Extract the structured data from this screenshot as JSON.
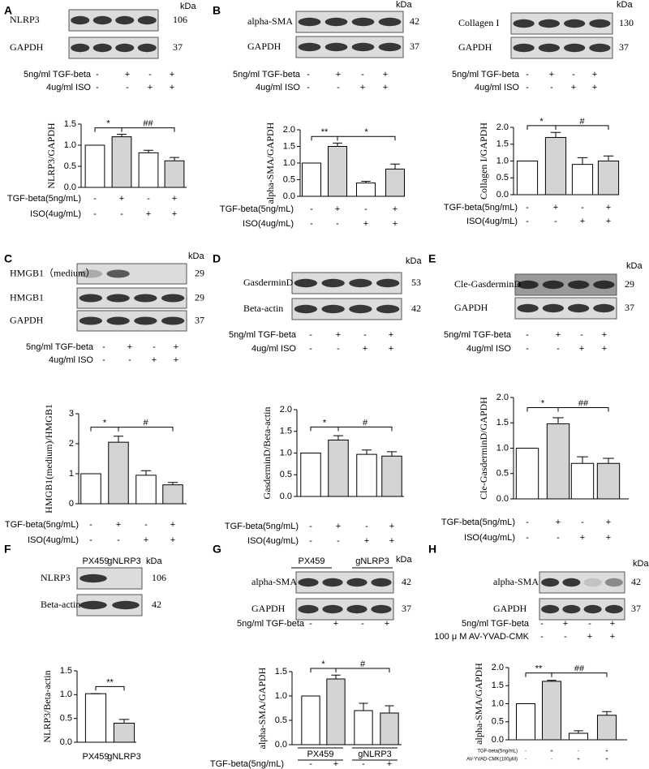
{
  "panels": [
    {
      "label": "A",
      "kda_unit": "kDa",
      "blots": [
        {
          "name": "NLRP3",
          "kda": 106
        },
        {
          "name": "GAPDH",
          "kda": 37
        }
      ],
      "treatments": [
        {
          "name": "5ng/ml TGF-beta",
          "signs": [
            "-",
            "+",
            "-",
            "+"
          ]
        },
        {
          "name": "4ug/ml ISO",
          "signs": [
            "-",
            "-",
            "+",
            "+"
          ]
        }
      ],
      "chart": {
        "type": "bar",
        "ylabel": "NLRP3/GAPDH",
        "ylim": [
          0,
          1.5
        ],
        "yticks": [
          {
            "value": 0,
            "label": "0.0"
          },
          0.5,
          {
            "value": 1,
            "label": "1.0"
          },
          1.5
        ],
        "values": [
          1.0,
          1.2,
          0.82,
          0.63
        ],
        "errors": [
          0,
          0.06,
          0.06,
          0.08
        ],
        "colors": [
          "#ffffff",
          "#d4d4d4",
          "#ffffff",
          "#d4d4d4"
        ],
        "significance": [
          "*",
          "##"
        ],
        "conditions": [
          {
            "name": "TGF-beta(5ng/mL)",
            "signs": [
              "-",
              "+",
              "-",
              "+"
            ]
          },
          {
            "name": "ISO(4ug/mL)",
            "signs": [
              "-",
              "-",
              "+",
              "+"
            ]
          }
        ]
      }
    },
    {
      "label": "B",
      "kda_unit": "kDa",
      "blots": [
        {
          "name": "alpha-SMA",
          "kda": 42
        },
        {
          "name": "GAPDH",
          "kda": 37
        }
      ],
      "treatments": [
        {
          "name": "5ng/ml TGF-beta",
          "signs": [
            "-",
            "+",
            "-",
            "+"
          ]
        },
        {
          "name": "4ug/ml ISO",
          "signs": [
            "-",
            "-",
            "+",
            "+"
          ]
        }
      ],
      "chart": {
        "type": "bar",
        "ylabel": "alpha-SMA/GAPDH",
        "ylim": [
          0,
          2
        ],
        "yticks": [
          {
            "value": 0,
            "label": "0.0"
          },
          0.5,
          {
            "value": 1,
            "label": "1.0"
          },
          1.5,
          {
            "value": 2,
            "label": "2.0"
          }
        ],
        "values": [
          1.0,
          1.5,
          0.4,
          0.82
        ],
        "errors": [
          0,
          0.1,
          0.05,
          0.15
        ],
        "colors": [
          "#ffffff",
          "#d4d4d4",
          "#ffffff",
          "#d4d4d4"
        ],
        "significance": [
          "**",
          "*"
        ],
        "conditions": [
          {
            "name": "TGF-beta(5ng/mL)",
            "signs": [
              "-",
              "+",
              "-",
              "+"
            ]
          },
          {
            "name": "ISO(4ug/mL)",
            "signs": [
              "-",
              "-",
              "+",
              "+"
            ]
          }
        ]
      }
    },
    {
      "kda_unit": "kDa",
      "blots": [
        {
          "name": "Collagen I",
          "kda": 130
        },
        {
          "name": "GAPDH",
          "kda": 37
        }
      ],
      "treatments": [
        {
          "name": "5ng/ml TGF-beta",
          "signs": [
            "-",
            "+",
            "-",
            "+"
          ]
        },
        {
          "name": "4ug/ml ISO",
          "signs": [
            "-",
            "-",
            "+",
            "+"
          ]
        }
      ],
      "chart": {
        "type": "bar",
        "ylabel": "Collagen I/GAPDH",
        "ylim": [
          0,
          2
        ],
        "yticks": [
          {
            "value": 0,
            "label": "0.0"
          },
          0.5,
          {
            "value": 1,
            "label": "1.0"
          },
          1.5,
          {
            "value": 2,
            "label": "2.0"
          }
        ],
        "values": [
          1.0,
          1.7,
          0.9,
          1.0
        ],
        "errors": [
          0,
          0.15,
          0.2,
          0.15
        ],
        "colors": [
          "#ffffff",
          "#d4d4d4",
          "#ffffff",
          "#d4d4d4"
        ],
        "significance": [
          "*",
          "#"
        ],
        "conditions": [
          {
            "name": "TGF-beta(5ng/mL)",
            "signs": [
              "-",
              "+",
              "-",
              "+"
            ]
          },
          {
            "name": "ISO(4ug/mL)",
            "signs": [
              "-",
              "-",
              "+",
              "+"
            ]
          }
        ]
      }
    },
    {
      "label": "C",
      "kda_unit": "kDa",
      "blots": [
        {
          "name": "HMGB1（medium）",
          "kda": 29
        },
        {
          "name": "HMGB1",
          "kda": 29
        },
        {
          "name": "GAPDH",
          "kda": 37
        }
      ],
      "treatments": [
        {
          "name": "5ng/ml TGF-beta",
          "signs": [
            "-",
            "+",
            "-",
            "+"
          ]
        },
        {
          "name": "4ug/ml ISO",
          "signs": [
            "-",
            "-",
            "+",
            "+"
          ]
        }
      ],
      "chart": {
        "type": "bar",
        "ylabel": "HMGB1(medium)/HMGB1",
        "ylim": [
          0,
          3
        ],
        "yticks": [
          0,
          1,
          2,
          3
        ],
        "values": [
          1.0,
          2.05,
          0.95,
          0.63
        ],
        "errors": [
          0,
          0.2,
          0.15,
          0.08
        ],
        "colors": [
          "#ffffff",
          "#d4d4d4",
          "#ffffff",
          "#d4d4d4"
        ],
        "significance": [
          "*",
          "#"
        ],
        "conditions": [
          {
            "name": "TGF-beta(5ng/mL)",
            "signs": [
              "-",
              "+",
              "-",
              "+"
            ]
          },
          {
            "name": "ISO(4ug/mL)",
            "signs": [
              "-",
              "-",
              "+",
              "+"
            ]
          }
        ]
      }
    },
    {
      "label": "D",
      "kda_unit": "kDa",
      "blots": [
        {
          "name": "GasderminD",
          "kda": 53
        },
        {
          "name": "Beta-actin",
          "kda": 42
        }
      ],
      "treatments": [
        {
          "name": "5ng/ml TGF-beta",
          "signs": [
            "-",
            "+",
            "-",
            "+"
          ]
        },
        {
          "name": "4ug/ml ISO",
          "signs": [
            "-",
            "-",
            "+",
            "+"
          ]
        }
      ],
      "chart": {
        "type": "bar",
        "ylabel": "GasderminD/Beta-actin",
        "ylim": [
          0,
          2
        ],
        "yticks": [
          {
            "value": 0,
            "label": "0.0"
          },
          0.5,
          {
            "value": 1,
            "label": "1.0"
          },
          1.5,
          {
            "value": 2,
            "label": "2.0"
          }
        ],
        "values": [
          1.0,
          1.3,
          0.97,
          0.93
        ],
        "errors": [
          0,
          0.1,
          0.1,
          0.1
        ],
        "colors": [
          "#ffffff",
          "#d4d4d4",
          "#ffffff",
          "#d4d4d4"
        ],
        "significance": [
          "*",
          "#"
        ],
        "conditions": [
          {
            "name": "TGF-beta(5ng/mL)",
            "signs": [
              "-",
              "+",
              "-",
              "+"
            ]
          },
          {
            "name": "ISO(4ug/mL)",
            "signs": [
              "-",
              "-",
              "+",
              "+"
            ]
          }
        ]
      }
    },
    {
      "label": "E",
      "kda_unit": "kDa",
      "blots": [
        {
          "name": "Cle-GasderminD",
          "kda": 29
        },
        {
          "name": "GAPDH",
          "kda": 37
        }
      ],
      "treatments": [
        {
          "name": "5ng/ml TGF-beta",
          "signs": [
            "-",
            "+",
            "-",
            "+"
          ]
        },
        {
          "name": "4ug/ml ISO",
          "signs": [
            "-",
            "-",
            "+",
            "+"
          ]
        }
      ],
      "chart": {
        "type": "bar",
        "ylabel": "Cle-GasderminD/GAPDH",
        "ylim": [
          0,
          2
        ],
        "yticks": [
          {
            "value": 0,
            "label": "0.0"
          },
          0.5,
          {
            "value": 1,
            "label": "1.0"
          },
          1.5,
          {
            "value": 2,
            "label": "2.0"
          }
        ],
        "values": [
          1.0,
          1.48,
          0.7,
          0.7
        ],
        "errors": [
          0,
          0.12,
          0.13,
          0.1
        ],
        "colors": [
          "#ffffff",
          "#d4d4d4",
          "#ffffff",
          "#d4d4d4"
        ],
        "significance": [
          "*",
          "##"
        ],
        "conditions": [
          {
            "name": "TGF-beta(5ng/mL)",
            "signs": [
              "-",
              "+",
              "-",
              "+"
            ]
          },
          {
            "name": "ISO(4ug/mL)",
            "signs": [
              "-",
              "-",
              "+",
              "+"
            ]
          }
        ]
      }
    },
    {
      "label": "F",
      "kda_unit": "kDa",
      "lane_headers": [
        "PX459",
        "gNLRP3"
      ],
      "blots": [
        {
          "name": "NLRP3",
          "kda": 106
        },
        {
          "name": "Beta-actin",
          "kda": 42
        }
      ],
      "chart": {
        "type": "bar",
        "ylabel": "NLRP3/Beta-actin",
        "ylim": [
          0,
          1.5
        ],
        "yticks": [
          {
            "value": 0,
            "label": "0.0"
          },
          0.5,
          {
            "value": 1,
            "label": "1.0"
          },
          1.5
        ],
        "categories": [
          "PX459",
          "gNLRP3"
        ],
        "values": [
          1.02,
          0.4
        ],
        "errors": [
          0,
          0.08
        ],
        "colors": [
          "#ffffff",
          "#d4d4d4"
        ],
        "significance": [
          "**"
        ]
      }
    },
    {
      "label": "G",
      "kda_unit": "kDa",
      "lane_headers": [
        "PX459",
        "gNLRP3"
      ],
      "blots": [
        {
          "name": "alpha-SMA",
          "kda": 42
        },
        {
          "name": "GAPDH",
          "kda": 37
        }
      ],
      "treatments": [
        {
          "name": "5ng/ml TGF-beta",
          "signs": [
            "-",
            "+",
            "-",
            "+"
          ]
        }
      ],
      "chart": {
        "type": "bar",
        "ylabel": "alpha-SMA/GAPDH",
        "ylim": [
          0,
          1.5
        ],
        "yticks": [
          {
            "value": 0,
            "label": "0.0"
          },
          0.5,
          {
            "value": 1,
            "label": "1.0"
          },
          1.5
        ],
        "values": [
          1.0,
          1.35,
          0.7,
          0.65
        ],
        "errors": [
          0,
          0.08,
          0.15,
          0.15
        ],
        "colors": [
          "#ffffff",
          "#d4d4d4",
          "#ffffff",
          "#d4d4d4"
        ],
        "significance": [
          "*",
          "#"
        ],
        "groups": [
          "PX459",
          "gNLRP3"
        ],
        "conditions": [
          {
            "name": "TGF-beta(5ng/mL)",
            "signs": [
              "-",
              "+",
              "-",
              "+"
            ]
          }
        ]
      }
    },
    {
      "label": "H",
      "kda_unit": "kDa",
      "blots": [
        {
          "name": "alpha-SMA",
          "kda": 42
        },
        {
          "name": "GAPDH",
          "kda": 37
        }
      ],
      "treatments": [
        {
          "name": "5ng/ml TGF-beta",
          "signs": [
            "-",
            "+",
            "-",
            "+"
          ]
        },
        {
          "name": "100 μ M AV-YVAD-CMK",
          "signs": [
            "-",
            "-",
            "+",
            "+"
          ]
        }
      ],
      "chart": {
        "type": "bar",
        "ylabel": "alpha-SMA/GAPDH",
        "ylim": [
          0,
          2
        ],
        "yticks": [
          {
            "value": 0,
            "label": "0.0"
          },
          0.5,
          {
            "value": 1,
            "label": "1.0"
          },
          1.5,
          {
            "value": 2,
            "label": "2.0"
          }
        ],
        "values": [
          1.0,
          1.62,
          0.18,
          0.68
        ],
        "errors": [
          0,
          0.03,
          0.07,
          0.1
        ],
        "colors": [
          "#ffffff",
          "#d4d4d4",
          "#ffffff",
          "#d4d4d4"
        ],
        "significance": [
          "**",
          "##"
        ],
        "conditions": [
          {
            "name": "TGF-beta(5ng/mL)",
            "signs": [
              "-",
              "+",
              "-",
              "+"
            ]
          },
          {
            "name": "AV-YVAD-CMK(100μM)",
            "signs": [
              "-",
              "-",
              "+",
              "+"
            ]
          }
        ]
      }
    }
  ]
}
